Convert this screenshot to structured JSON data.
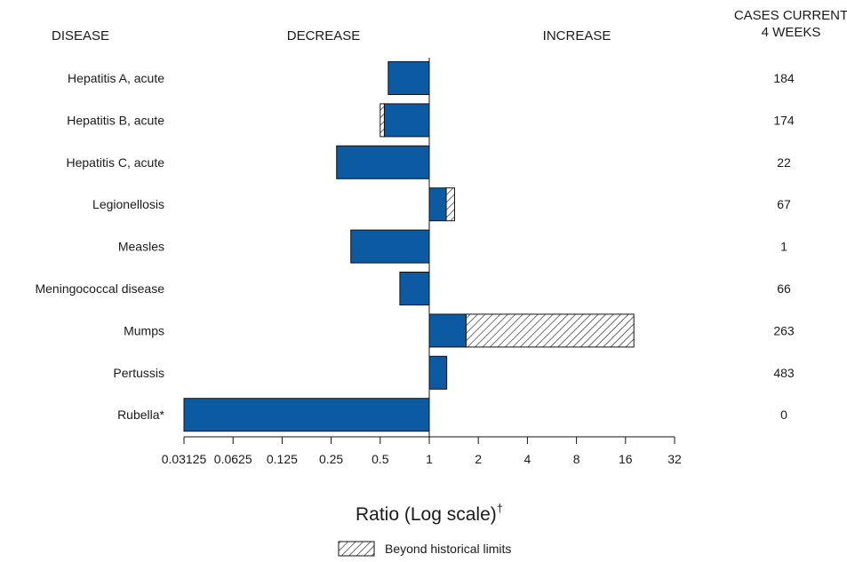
{
  "chart_data": {
    "type": "bar",
    "orientation": "horizontal",
    "headers": {
      "disease": "DISEASE",
      "decrease": "DECREASE",
      "increase": "INCREASE",
      "cases_line1": "CASES CURRENT",
      "cases_line2": "4 WEEKS"
    },
    "categories": [
      "Hepatitis A, acute",
      "Hepatitis B, acute",
      "Hepatitis C, acute",
      "Legionellosis",
      "Measles",
      "Meningococcal disease",
      "Mumps",
      "Pertussis",
      "Rubella*"
    ],
    "series": [
      {
        "key": "ratio",
        "values": [
          0.56,
          0.53,
          0.27,
          1.27,
          0.33,
          0.66,
          1.68,
          1.28,
          0.03125
        ]
      },
      {
        "key": "beyond_limit",
        "values": [
          null,
          0.5,
          null,
          1.43,
          null,
          null,
          18.0,
          null,
          null
        ]
      }
    ],
    "cases_current_4_weeks": [
      "184",
      "174",
      "22",
      "67",
      "1",
      "66",
      "263",
      "483",
      "0"
    ],
    "xaxis": {
      "scale": "log2",
      "ticks": [
        "0.03125",
        "0.0625",
        "0.125",
        "0.25",
        "0.5",
        "1",
        "2",
        "4",
        "8",
        "16",
        "32"
      ],
      "tick_values": [
        0.03125,
        0.0625,
        0.125,
        0.25,
        0.5,
        1,
        2,
        4,
        8,
        16,
        32
      ],
      "xlim": [
        0.03125,
        32
      ],
      "label": "Ratio (Log scale)",
      "label_superscript": "†"
    },
    "legend": {
      "label": "Beyond historical limits",
      "placement": "bottom-center"
    },
    "colors": {
      "bar": "#0b5aa2",
      "edge": "#111111",
      "hatch": "#111111"
    },
    "grid": false
  }
}
